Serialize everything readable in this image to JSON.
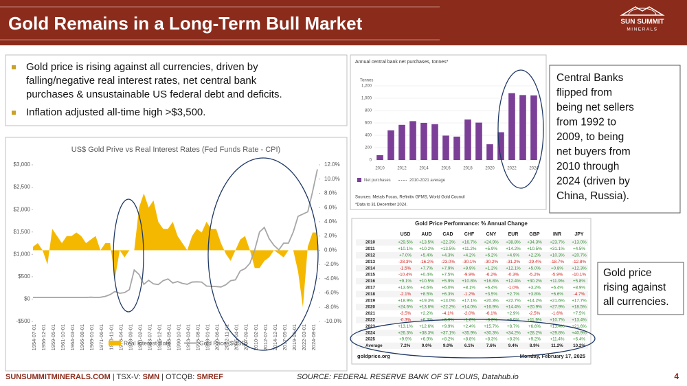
{
  "header": {
    "title": "Gold Remains in a Long-Term Bull Market",
    "logo": [
      "SUN SUMMIT",
      "MINERALS"
    ]
  },
  "bullets": [
    [
      "Gold price is rising against all currencies, driven by",
      "falling/negative real interest rates, net central bank",
      "purchases & unsustainable US federal debt and deficits."
    ],
    [
      "Inflation adjusted all-time high >$3,500."
    ]
  ],
  "chart_data": [
    {
      "type": "line",
      "title": "US$ Gold Prive vs Real Interest Rates (Fed Funds Rate - CPI)",
      "categories": [
        "1954-07-01",
        null,
        "1956-12-01",
        null,
        "1959-05-01",
        null,
        "1961-10-01",
        null,
        "1964-03-01",
        null,
        "1966-08-01",
        null,
        "1969-01-01",
        null,
        "1971-06-01",
        null,
        "1973-11-01",
        null,
        "1976-04-01",
        null,
        "1978-09-01",
        null,
        "1981-02-01",
        null,
        "1983-07-01",
        null,
        "1985-12-01",
        null,
        "1988-05-01",
        null,
        "1990-10-01",
        null,
        "1993-03-01",
        null,
        "1995-08-01",
        null,
        "1998-01-01",
        null,
        "2000-06-01",
        null,
        "2002-11-01",
        null,
        "2005-04-01",
        null,
        "2007-09-01",
        null,
        "2010-02-01",
        null,
        "2012-07-01",
        null,
        "2014-12-01",
        null,
        "2017-05-01",
        null,
        "2019-10-01",
        null,
        "2022-03-01",
        null,
        "2024-08-01",
        null
      ],
      "series": [
        {
          "name": "Real Interest Rate",
          "color": "#f5b800",
          "axis": "y2",
          "style": "area",
          "values": [
            0.5,
            1,
            0,
            -2,
            3,
            2,
            1,
            2,
            2,
            2.5,
            2,
            1,
            1.5,
            2,
            0,
            1,
            1,
            -4,
            0,
            -1,
            0,
            0,
            6,
            8,
            6,
            7,
            4,
            3,
            3,
            4,
            2,
            1,
            0,
            2,
            3,
            2.5,
            4,
            3,
            3,
            1,
            -0.5,
            -1.5,
            0,
            1.5,
            2,
            0,
            -2.5,
            -2.5,
            -1.5,
            -1,
            0,
            -0.5,
            -1,
            0,
            0,
            -3,
            -8,
            0.5,
            2.5,
            2.5
          ]
        },
        {
          "name": "Gold Price ($USD)",
          "color": "#a6a6a6",
          "style": "line",
          "values": [
            35,
            35,
            35,
            35,
            35,
            35,
            35,
            35,
            35,
            35,
            35,
            35,
            42,
            36,
            40,
            60,
            100,
            170,
            130,
            145,
            210,
            650,
            550,
            330,
            420,
            340,
            325,
            410,
            450,
            360,
            390,
            350,
            330,
            380,
            385,
            380,
            290,
            285,
            280,
            270,
            320,
            410,
            430,
            630,
            680,
            800,
            1100,
            1500,
            1600,
            1350,
            1200,
            1100,
            1250,
            1250,
            1500,
            1850,
            1900,
            1950,
            2400,
            2900
          ]
        }
      ],
      "ylim": [
        -500,
        3000
      ],
      "yticks": [
        {
          "value": -500,
          "label": "-$500"
        },
        {
          "value": 0,
          "label": "$0"
        },
        {
          "value": 500,
          "label": "$500"
        },
        {
          "value": 1000,
          "label": "$1,000"
        },
        {
          "value": 1500,
          "label": "$1,500"
        },
        {
          "value": 2000,
          "label": "$2,000"
        },
        {
          "value": 2500,
          "label": "$2,500"
        },
        {
          "value": 3000,
          "label": "$3,000"
        }
      ],
      "y2lim": [
        -10,
        12
      ],
      "y2ticks": [
        {
          "value": -10,
          "label": "-10.0%"
        },
        {
          "value": -8,
          "label": "-8.0%"
        },
        {
          "value": -6,
          "label": "-6.0%"
        },
        {
          "value": -4,
          "label": "-4.0%"
        },
        {
          "value": -2,
          "label": "-2.0%"
        },
        {
          "value": 0,
          "label": "0.0%"
        },
        {
          "value": 2,
          "label": "2.0%"
        },
        {
          "value": 4,
          "label": "4.0%"
        },
        {
          "value": 6,
          "label": "6.0%"
        },
        {
          "value": 8,
          "label": "8.0%"
        },
        {
          "value": 10,
          "label": "10.0%"
        },
        {
          "value": 12,
          "label": "12.0%"
        }
      ],
      "legend": "bottom"
    },
    {
      "type": "bar",
      "title": "Annual central bank net purchases, tonnes*",
      "y_label": "Tonnes",
      "categories": [
        "2010",
        null,
        "2012",
        null,
        "2014",
        null,
        "2016",
        null,
        "2018",
        null,
        "2020",
        null,
        "2022",
        null,
        "2024"
      ],
      "values": [
        79,
        481,
        569,
        629,
        601,
        580,
        395,
        379,
        656,
        605,
        255,
        450,
        1082,
        1051,
        1045
      ],
      "color": "#7b3f98",
      "ylim": [
        0,
        1200
      ],
      "yticks": [
        0,
        200,
        400,
        600,
        800,
        {
          "value": 1000,
          "label": "1,000"
        },
        {
          "value": 1200,
          "label": "1,200"
        }
      ],
      "grid": true,
      "legend": [
        "Net purchases",
        "2010-2021 average"
      ],
      "source": "Sources: Metals Focus, Refinitiv GFMS, World Gold Council",
      "note": "*Data to 31 December 2024."
    }
  ],
  "callouts": [
    [
      "Central Banks",
      "flipped from",
      "being net sellers",
      "from 1992 to",
      "2009, to being",
      "net buyers from",
      "2010 through",
      "2024 (driven by",
      "China, Russia)."
    ],
    [
      "Gold price",
      "rising against",
      "all currencies."
    ]
  ],
  "table": {
    "title": "Gold Price Performance: % Annual Change",
    "columns": [
      "USD",
      "AUD",
      "CAD",
      "CHF",
      "CNY",
      "EUR",
      "GBP",
      "INR",
      "JPY"
    ],
    "rows": [
      [
        "2010",
        "+29.5%",
        "+13.5%",
        "+22.3%",
        "+16.7%",
        "+24.9%",
        "+38.8%",
        "+34.3%",
        "+23.7%",
        "+13.0%"
      ],
      [
        "2011",
        "+10.1%",
        "+10.2%",
        "+13.5%",
        "+11.2%",
        "+5.9%",
        "+14.2%",
        "+10.5%",
        "+31.1%",
        "+4.5%"
      ],
      [
        "2012",
        "+7.0%",
        "+5.4%",
        "+4.3%",
        "+4.2%",
        "+6.2%",
        "+4.9%",
        "+2.2%",
        "+10.3%",
        "+20.7%"
      ],
      [
        "2013",
        "-28.3%",
        "-16.2%",
        "-23.0%",
        "-30.1%",
        "-30.2%",
        "-31.2%",
        "-29.4%",
        "-18.7%",
        "-12.8%"
      ],
      [
        "2014",
        "-1.5%",
        "+7.7%",
        "+7.9%",
        "+9.9%",
        "+1.2%",
        "+12.1%",
        "+5.0%",
        "+0.8%",
        "+12.3%"
      ],
      [
        "2015",
        "-10.4%",
        "+0.4%",
        "+7.5%",
        "-9.9%",
        "-6.2%",
        "-0.3%",
        "-5.2%",
        "-5.9%",
        "-10.1%"
      ],
      [
        "2016",
        "+9.1%",
        "+10.5%",
        "+5.9%",
        "+10.8%",
        "+16.8%",
        "+12.4%",
        "+30.2%",
        "+11.9%",
        "+5.8%"
      ],
      [
        "2017",
        "+13.6%",
        "+4.6%",
        "+6.0%",
        "+8.1%",
        "+6.4%",
        "-1.0%",
        "+3.2%",
        "+6.4%",
        "+8.9%"
      ],
      [
        "2018",
        "-2.1%",
        "+8.5%",
        "+6.3%",
        "-1.2%",
        "+3.5%",
        "+2.7%",
        "+3.8%",
        "+6.6%",
        "-4.7%"
      ],
      [
        "2019",
        "+18.9%",
        "+19.3%",
        "+13.0%",
        "+17.1%",
        "+20.3%",
        "+22.7%",
        "+14.2%",
        "+21.6%",
        "+17.7%"
      ],
      [
        "2020",
        "+24.6%",
        "+13.6%",
        "+22.2%",
        "+14.0%",
        "+16.9%",
        "+14.4%",
        "+20.9%",
        "+27.9%",
        "+18.5%"
      ],
      [
        "2021",
        "-3.5%",
        "+2.2%",
        "-4.1%",
        "-2.0%",
        "-6.1%",
        "+2.9%",
        "-2.5%",
        "-1.6%",
        "+7.5%"
      ],
      [
        "2022",
        "-0.3%",
        "+6.3%",
        "+6.9%",
        "+1.0%",
        "+8.3%",
        "+6.0%",
        "+11.9%",
        "+10.7%",
        "+13.4%"
      ],
      [
        "2023",
        "+13.1%",
        "+12.6%",
        "+9.9%",
        "+2.4%",
        "+15.7%",
        "+8.7%",
        "+6.6%",
        "+13.4%",
        "+21.6%"
      ],
      [
        "2024",
        "+26.3%",
        "+38.3%",
        "+37.1%",
        "+35.9%",
        "+30.3%",
        "+34.2%",
        "+28.2%",
        "+29.8%",
        "+40.9%"
      ],
      [
        "2025",
        "+9.9%",
        "+6.9%",
        "+8.2%",
        "+8.8%",
        "+8.3%",
        "+8.3%",
        "+9.2%",
        "+11.4%",
        "+6.4%"
      ],
      [
        "Average",
        "7.2%",
        "9.0%",
        "9.0%",
        "6.1%",
        "7.6%",
        "9.4%",
        "8.9%",
        "11.2%",
        "10.2%"
      ]
    ],
    "positive_color": "#2e8b2e",
    "negative_color": "#d0201c",
    "site": "goldprice.org",
    "date": "Monday, February 17, 2025"
  },
  "footer": {
    "company": [
      "SUNSUMMITMINERALS.COM",
      " | TSX-V: ",
      "SMN",
      " | OTCQB: ",
      "SMREF"
    ],
    "source": "SOURCE: FEDERAL RESERVE BANK OF ST LOUIS, Datahub.io",
    "page": "4"
  }
}
